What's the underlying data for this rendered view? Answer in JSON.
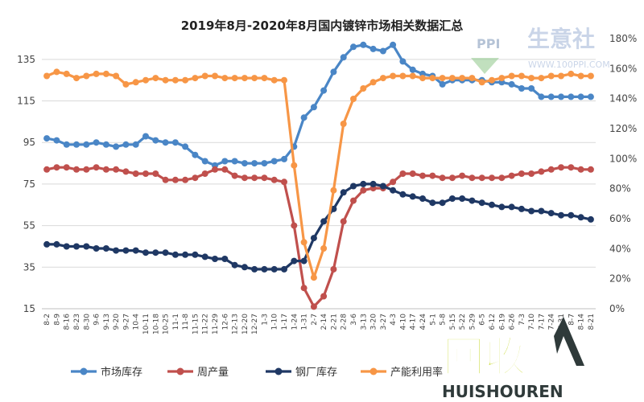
{
  "chart_data": {
    "type": "line",
    "title": "2019年8月-2020年8月国内镀锌市场相关数据汇总",
    "xlabel": "",
    "ylabel": "",
    "ylim": [
      15,
      145
    ],
    "yticks": [
      15,
      35,
      55,
      75,
      95,
      115,
      135
    ],
    "y2lim": [
      0,
      180
    ],
    "y2ticks": [
      "0%",
      "20%",
      "40%",
      "60%",
      "80%",
      "100%",
      "120%",
      "140%",
      "160%",
      "180%"
    ],
    "y2values": [
      0,
      20,
      40,
      60,
      80,
      100,
      120,
      140,
      160,
      180
    ],
    "grid": "horizontal",
    "legend_position": "bottom",
    "categories": [
      "8-2",
      "8-9",
      "8-16",
      "8-23",
      "8-30",
      "9-6",
      "9-13",
      "9-20",
      "9-27",
      "10-4",
      "10-11",
      "10-18",
      "10-25",
      "11-1",
      "11-8",
      "11-15",
      "11-22",
      "11-29",
      "12-6",
      "12-13",
      "12-20",
      "12-27",
      "1-3",
      "1-10",
      "1-17",
      "1-24",
      "1-31",
      "2-7",
      "2-14",
      "2-21",
      "2-28",
      "3-6",
      "3-13",
      "3-20",
      "3-27",
      "4-3",
      "4-10",
      "4-17",
      "4-24",
      "5-1",
      "5-8",
      "5-15",
      "5-22",
      "5-29",
      "6-5",
      "6-12",
      "6-19",
      "6-26",
      "7-3",
      "7-10",
      "7-17",
      "7-24",
      "7-31",
      "8-7",
      "8-14",
      "8-21"
    ],
    "xtick_labels": [
      "8-2",
      "8-9",
      "8-16",
      "8-23",
      "8-30",
      "9-6",
      "9-13",
      "9-20",
      "9-27",
      "10-4",
      "10-11",
      "10-18",
      "10-25",
      "11-1",
      "11-8",
      "11-15",
      "11-22",
      "11-29",
      "12-6",
      "12-13",
      "12-20",
      "12-27",
      "1-3",
      "1-10",
      "1-17",
      "1-24",
      "1-31",
      "2-7",
      "2-14",
      "2-21",
      "2-28",
      "3-6",
      "3-13",
      "3-20",
      "3-27",
      "4-3",
      "4-10",
      "4-17",
      "4-24",
      "5-1",
      "5-8",
      "5-15",
      "5-22",
      "5-29",
      "6-5",
      "6-12",
      "6-19",
      "6-26",
      "7-3",
      "7-10",
      "7-17",
      "7-24",
      "7-31",
      "8-7",
      "8-14",
      "8-21"
    ],
    "series": [
      {
        "name": "市场库存",
        "axis": "left",
        "color": "#4a86c6",
        "values": [
          97,
          96,
          94,
          94,
          94,
          95,
          94,
          93,
          94,
          94,
          98,
          96,
          95,
          95,
          93,
          89,
          86,
          84,
          86,
          86,
          85,
          85,
          85,
          86,
          87,
          93,
          107,
          112,
          120,
          129,
          136,
          141,
          142,
          140,
          139,
          142,
          134,
          130,
          128,
          127,
          123,
          125,
          125,
          125,
          125,
          124,
          124,
          123,
          121,
          121,
          117,
          117,
          117,
          117,
          117,
          117
        ]
      },
      {
        "name": "周产量",
        "axis": "left",
        "color": "#c0504d",
        "values": [
          82,
          83,
          83,
          82,
          82,
          83,
          82,
          82,
          81,
          80,
          80,
          80,
          77,
          77,
          77,
          78,
          80,
          82,
          82,
          79,
          78,
          78,
          78,
          77,
          76,
          55,
          25,
          16,
          21,
          34,
          57,
          67,
          72,
          73,
          73,
          76,
          80,
          80,
          79,
          79,
          78,
          78,
          79,
          78,
          78,
          78,
          78,
          79,
          80,
          80,
          81,
          82,
          83,
          83,
          82,
          82
        ]
      },
      {
        "name": "钢厂库存",
        "axis": "left",
        "color": "#1f3864",
        "values": [
          46,
          46,
          45,
          45,
          45,
          44,
          44,
          43,
          43,
          43,
          42,
          42,
          42,
          41,
          41,
          41,
          40,
          39,
          39,
          36,
          35,
          34,
          34,
          34,
          34,
          38,
          38,
          49,
          57,
          63,
          71,
          74,
          75,
          75,
          74,
          72,
          70,
          69,
          68,
          66,
          66,
          68,
          68,
          67,
          66,
          65,
          64,
          64,
          63,
          62,
          62,
          61,
          60,
          60,
          59,
          58
        ]
      },
      {
        "name": "产能利用率",
        "axis": "left",
        "color": "#f79646",
        "values": [
          127,
          129,
          128,
          126,
          127,
          128,
          128,
          127,
          123,
          124,
          125,
          126,
          125,
          125,
          125,
          126,
          127,
          127,
          126,
          126,
          126,
          126,
          126,
          125,
          125,
          84,
          47,
          30,
          44,
          72,
          104,
          116,
          121,
          124,
          126,
          127,
          127,
          127,
          126,
          126,
          126,
          126,
          126,
          126,
          124,
          125,
          126,
          127,
          127,
          126,
          126,
          127,
          127,
          128,
          127,
          127
        ]
      }
    ]
  },
  "watermark": {
    "ppi_brand": "PPI",
    "ppi_text": "生意社",
    "ppi_url": "WWW.100PPI.COM",
    "logo_text": "回收",
    "logo_sub": "HUISHOUREN"
  }
}
